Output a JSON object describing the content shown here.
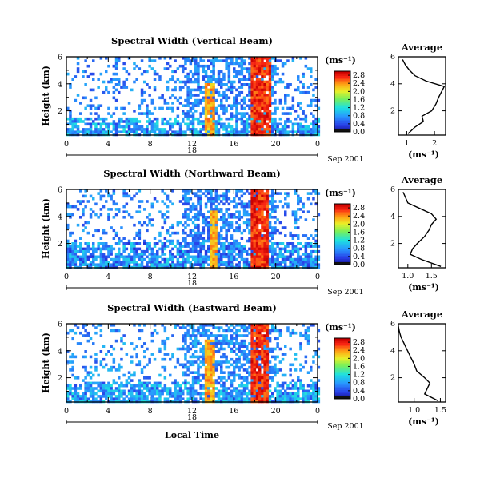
{
  "figure": {
    "xlabel": "Local Time",
    "date_label": "Sep 2001",
    "day_marker": "18",
    "colorbar_unit": "(ms⁻¹)",
    "avg_title": "Average",
    "avg_xlabel": "(ms⁻¹)"
  },
  "chart_data": [
    {
      "type": "heatmap",
      "title": "Spectral Width (Vertical Beam)",
      "ylabel": "Height (km)",
      "x_ticks": [
        "0",
        "4",
        "8",
        "12",
        "16",
        "20",
        "0"
      ],
      "y_ticks": [
        "2",
        "4",
        "6"
      ],
      "xlim": [
        0,
        24
      ],
      "ylim": [
        0.2,
        6.0
      ],
      "colorbar": {
        "labels": [
          "0.0",
          "0.4",
          "0.8",
          "1.2",
          "1.6",
          "2.0",
          "2.4",
          "2.8"
        ],
        "range": [
          0.0,
          3.0
        ]
      },
      "features": {
        "low_band_top_km": 1.6,
        "low_band_value": 0.6,
        "sparse_region_value": 0.35,
        "high_columns": [
          {
            "from": 13.2,
            "to": 14.0,
            "top_km": 4.2,
            "value": 2.6
          },
          {
            "from": 17.5,
            "to": 19.4,
            "top_km": 6.0,
            "value": 3.0
          }
        ]
      },
      "average_profile": {
        "x_ticks": [
          "1",
          "2"
        ],
        "xlim": [
          0.7,
          2.4
        ],
        "height": [
          0.3,
          0.8,
          1.2,
          1.6,
          2.0,
          2.5,
          3.0,
          3.4,
          3.8,
          4.2,
          4.6,
          5.0,
          5.4,
          5.8
        ],
        "value": [
          1.05,
          1.3,
          1.6,
          1.55,
          1.9,
          2.05,
          2.15,
          2.25,
          2.35,
          1.7,
          1.3,
          1.1,
          0.95,
          0.85
        ]
      }
    },
    {
      "type": "heatmap",
      "title": "Spectral Width (Northward Beam)",
      "ylabel": "Height (km)",
      "x_ticks": [
        "0",
        "4",
        "8",
        "12",
        "16",
        "20",
        "0"
      ],
      "y_ticks": [
        "2",
        "4",
        "6"
      ],
      "xlim": [
        0,
        24
      ],
      "ylim": [
        0.2,
        6.0
      ],
      "colorbar": {
        "labels": [
          "0.0",
          "0.4",
          "0.8",
          "1.2",
          "1.6",
          "2.0",
          "2.4",
          "2.8"
        ],
        "range": [
          0.0,
          3.0
        ]
      },
      "features": {
        "low_band_top_km": 2.2,
        "low_band_value": 0.5,
        "sparse_region_value": 0.35,
        "high_columns": [
          {
            "from": 13.5,
            "to": 14.3,
            "top_km": 4.6,
            "value": 2.6
          },
          {
            "from": 17.6,
            "to": 19.3,
            "top_km": 6.0,
            "value": 3.0
          }
        ]
      },
      "average_profile": {
        "x_ticks": [
          "1.0",
          "1.5"
        ],
        "xlim": [
          0.8,
          1.8
        ],
        "height": [
          0.3,
          0.8,
          1.2,
          1.6,
          2.0,
          2.5,
          3.0,
          3.4,
          3.8,
          4.2,
          4.6,
          5.0,
          5.4,
          5.8
        ],
        "value": [
          1.7,
          1.3,
          1.05,
          1.1,
          1.2,
          1.35,
          1.45,
          1.5,
          1.6,
          1.5,
          1.25,
          1.0,
          0.95,
          0.9
        ]
      }
    },
    {
      "type": "heatmap",
      "title": "Spectral Width (Eastward Beam)",
      "ylabel": "Height (km)",
      "x_ticks": [
        "0",
        "4",
        "8",
        "12",
        "16",
        "20",
        "0"
      ],
      "y_ticks": [
        "2",
        "4",
        "6"
      ],
      "xlim": [
        0,
        24
      ],
      "ylim": [
        0.2,
        6.0
      ],
      "colorbar": {
        "labels": [
          "0.0",
          "0.4",
          "0.8",
          "1.2",
          "1.6",
          "2.0",
          "2.4",
          "2.8"
        ],
        "range": [
          0.0,
          3.0
        ]
      },
      "features": {
        "low_band_top_km": 1.8,
        "low_band_value": 0.6,
        "sparse_region_value": 0.4,
        "high_columns": [
          {
            "from": 13.2,
            "to": 14.0,
            "top_km": 5.0,
            "value": 2.6
          },
          {
            "from": 17.5,
            "to": 19.3,
            "top_km": 6.0,
            "value": 3.0
          }
        ]
      },
      "average_profile": {
        "x_ticks": [
          "1.0",
          "1.5"
        ],
        "xlim": [
          0.7,
          1.6
        ],
        "height": [
          0.3,
          0.8,
          1.2,
          1.6,
          2.0,
          2.5,
          3.0,
          3.4,
          3.8,
          4.2,
          4.6,
          5.0,
          5.4,
          5.8
        ],
        "value": [
          1.45,
          1.2,
          1.25,
          1.3,
          1.2,
          1.05,
          1.0,
          0.95,
          0.9,
          0.85,
          0.8,
          0.75,
          0.72,
          0.7
        ]
      }
    }
  ]
}
